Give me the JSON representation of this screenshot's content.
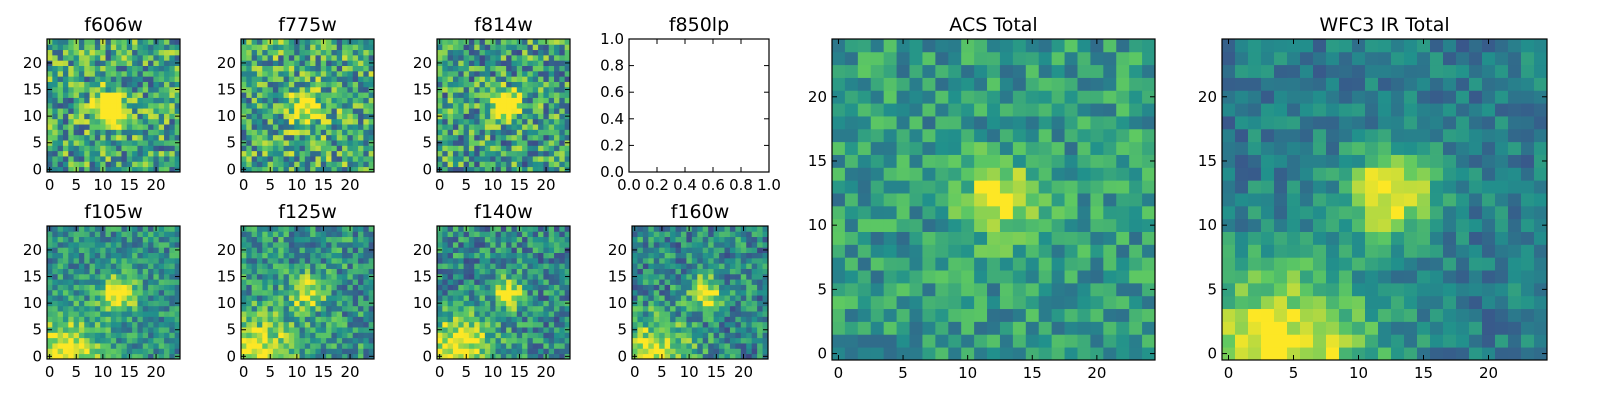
{
  "colormap": [
    "#440154",
    "#3b528b",
    "#21918c",
    "#5ec962",
    "#fde725"
  ],
  "chart_data": [
    {
      "type": "heatmap",
      "title": "f606w",
      "image_size": 25,
      "x_ticks": [
        "0",
        "5",
        "10",
        "15",
        "20"
      ],
      "y_ticks": [
        "0",
        "5",
        "10",
        "15",
        "20"
      ],
      "source_center": [
        11.5,
        11.5
      ],
      "source_sigma": 2.2,
      "source_peak": 0.78,
      "background": 0.58,
      "noise": 0.34,
      "corner_glow": null,
      "seed": 11
    },
    {
      "type": "heatmap",
      "title": "f775w",
      "image_size": 25,
      "x_ticks": [
        "0",
        "5",
        "10",
        "15",
        "20"
      ],
      "y_ticks": [
        "0",
        "5",
        "10",
        "15",
        "20"
      ],
      "source_center": [
        11.5,
        11.5
      ],
      "source_sigma": 2.2,
      "source_peak": 0.55,
      "background": 0.6,
      "noise": 0.34,
      "corner_glow": null,
      "seed": 23
    },
    {
      "type": "heatmap",
      "title": "f814w",
      "image_size": 25,
      "x_ticks": [
        "0",
        "5",
        "10",
        "15",
        "20"
      ],
      "y_ticks": [
        "0",
        "5",
        "10",
        "15",
        "20"
      ],
      "source_center": [
        12.5,
        12
      ],
      "source_sigma": 1.8,
      "source_peak": 0.9,
      "background": 0.56,
      "noise": 0.34,
      "corner_glow": null,
      "seed": 37
    },
    {
      "type": "empty",
      "title": "f850lp",
      "x_ticks": [
        "0.0",
        "0.2",
        "0.4",
        "0.6",
        "0.8",
        "1.0"
      ],
      "y_ticks": [
        "0.0",
        "0.2",
        "0.4",
        "0.6",
        "0.8",
        "1.0"
      ],
      "xlim": [
        0,
        1
      ],
      "ylim": [
        0,
        1
      ]
    },
    {
      "type": "heatmap",
      "title": "f105w",
      "image_size": 25,
      "x_ticks": [
        "0",
        "5",
        "10",
        "15",
        "20"
      ],
      "y_ticks": [
        "0",
        "5",
        "10",
        "15",
        "20"
      ],
      "source_center": [
        13,
        12
      ],
      "source_sigma": 2.4,
      "source_peak": 0.6,
      "background": 0.5,
      "noise": 0.22,
      "corner_glow": [
        2.5,
        0,
        5,
        0.55
      ],
      "seed": 41
    },
    {
      "type": "heatmap",
      "title": "f125w",
      "image_size": 25,
      "x_ticks": [
        "0",
        "5",
        "10",
        "15",
        "20"
      ],
      "y_ticks": [
        "0",
        "5",
        "10",
        "15",
        "20"
      ],
      "source_center": [
        12,
        12
      ],
      "source_sigma": 2.2,
      "source_peak": 0.45,
      "background": 0.52,
      "noise": 0.26,
      "corner_glow": [
        3,
        0,
        5,
        0.5
      ],
      "seed": 53
    },
    {
      "type": "heatmap",
      "title": "f140w",
      "image_size": 25,
      "x_ticks": [
        "0",
        "5",
        "10",
        "15",
        "20"
      ],
      "y_ticks": [
        "0",
        "5",
        "10",
        "15",
        "20"
      ],
      "source_center": [
        13,
        12
      ],
      "source_sigma": 2,
      "source_peak": 0.55,
      "background": 0.48,
      "noise": 0.26,
      "corner_glow": [
        3,
        0,
        5,
        0.6
      ],
      "seed": 67
    },
    {
      "type": "heatmap",
      "title": "f160w",
      "image_size": 25,
      "x_ticks": [
        "0",
        "5",
        "10",
        "15",
        "20"
      ],
      "y_ticks": [
        "0",
        "5",
        "10",
        "15",
        "20"
      ],
      "source_center": [
        13,
        12
      ],
      "source_sigma": 2,
      "source_peak": 0.6,
      "background": 0.47,
      "noise": 0.26,
      "corner_glow": [
        3,
        0,
        5,
        0.55
      ],
      "seed": 79
    },
    {
      "type": "heatmap",
      "title": "ACS Total",
      "image_size": 25,
      "x_ticks": [
        "0",
        "5",
        "10",
        "15",
        "20"
      ],
      "y_ticks": [
        "0",
        "5",
        "10",
        "15",
        "20"
      ],
      "source_center": [
        12.5,
        12
      ],
      "source_sigma": 1.9,
      "source_peak": 0.5,
      "background": 0.55,
      "noise": 0.2,
      "corner_glow": null,
      "seed": 97
    },
    {
      "type": "heatmap",
      "title": "WFC3 IR Total",
      "image_size": 25,
      "x_ticks": [
        "0",
        "5",
        "10",
        "15",
        "20"
      ],
      "y_ticks": [
        "0",
        "5",
        "10",
        "15",
        "20"
      ],
      "source_center": [
        12.5,
        12.5
      ],
      "source_sigma": 2.4,
      "source_peak": 0.6,
      "background": 0.42,
      "noise": 0.15,
      "corner_glow": [
        4,
        0,
        5,
        0.6
      ],
      "seed": 113
    }
  ]
}
